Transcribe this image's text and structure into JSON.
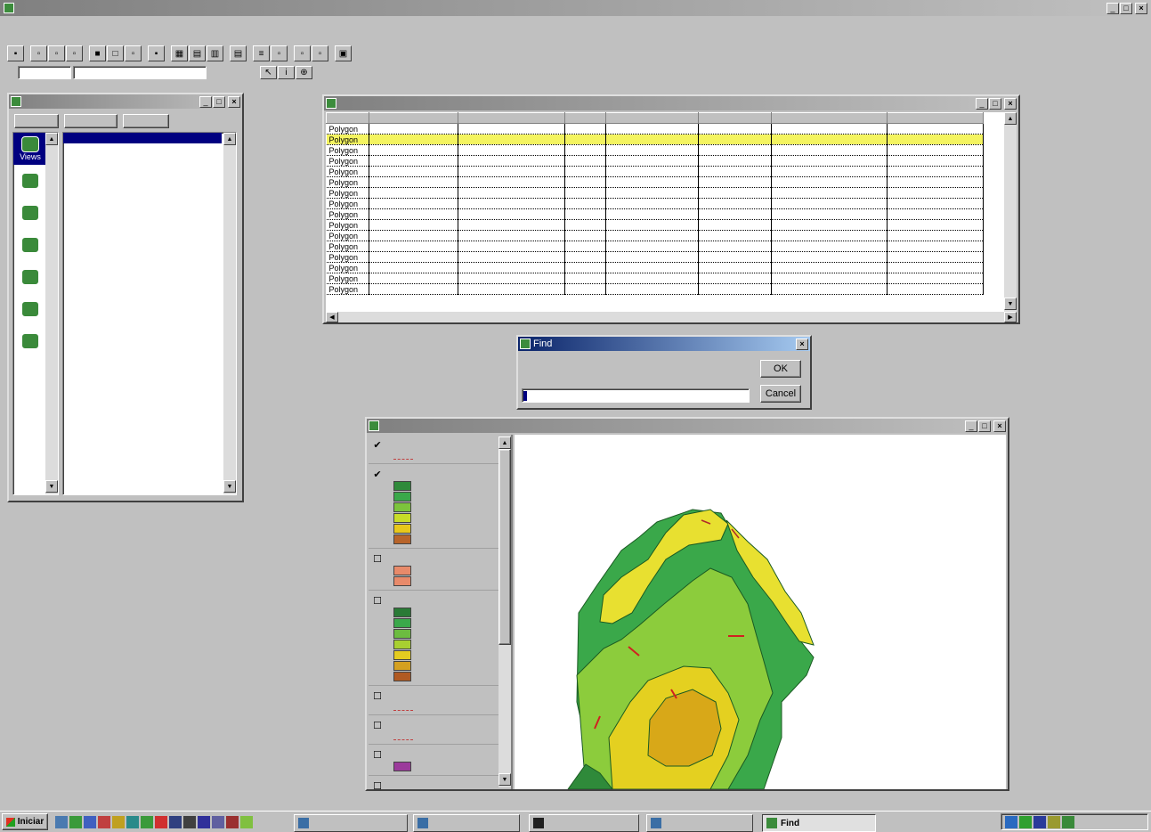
{
  "app": {
    "title": "",
    "menu": [
      "",
      "",
      "",
      "",
      "",
      "",
      "",
      ""
    ],
    "toolbar_labels": {
      "scale_field": "",
      "scale_text": ""
    }
  },
  "project": {
    "title": "",
    "buttons": {
      "new": "",
      "open": "",
      "print": ""
    },
    "doc_types": [
      {
        "label": "Views",
        "icon": "globe-icon"
      },
      {
        "label": "",
        "icon": "table-icon"
      },
      {
        "label": "",
        "icon": "chart-icon"
      },
      {
        "label": "",
        "icon": "layout-icon"
      },
      {
        "label": "",
        "icon": "script-icon"
      },
      {
        "label": "",
        "icon": "dialog-icon"
      },
      {
        "label": "",
        "icon": "view-icon"
      }
    ],
    "selected_item": ""
  },
  "attributes": {
    "title": "",
    "columns": [
      "",
      "",
      "",
      "",
      "",
      "",
      "",
      ""
    ],
    "rows": [
      [
        "Polygon",
        "",
        "",
        "",
        "",
        "",
        "",
        ""
      ],
      [
        "Polygon",
        "",
        "",
        "",
        "",
        "",
        "",
        ""
      ],
      [
        "Polygon",
        "",
        "",
        "",
        "",
        "",
        "",
        ""
      ],
      [
        "Polygon",
        "",
        "",
        "",
        "",
        "",
        "",
        ""
      ],
      [
        "Polygon",
        "",
        "",
        "",
        "",
        "",
        "",
        ""
      ],
      [
        "Polygon",
        "",
        "",
        "",
        "",
        "",
        "",
        ""
      ],
      [
        "Polygon",
        "",
        "",
        "",
        "",
        "",
        "",
        ""
      ],
      [
        "Polygon",
        "",
        "",
        "",
        "",
        "",
        "",
        ""
      ],
      [
        "Polygon",
        "",
        "",
        "",
        "",
        "",
        "",
        ""
      ],
      [
        "Polygon",
        "",
        "",
        "",
        "",
        "",
        "",
        ""
      ],
      [
        "Polygon",
        "",
        "",
        "",
        "",
        "",
        "",
        ""
      ],
      [
        "Polygon",
        "",
        "",
        "",
        "",
        "",
        "",
        ""
      ],
      [
        "Polygon",
        "",
        "",
        "",
        "",
        "",
        "",
        ""
      ],
      [
        "Polygon",
        "",
        "",
        "",
        "",
        "",
        "",
        ""
      ],
      [
        "Polygon",
        "",
        "",
        "",
        "",
        "",
        "",
        ""
      ],
      [
        "Polygon",
        "",
        "",
        "",
        "",
        "",
        "",
        ""
      ]
    ],
    "selected_row": 1
  },
  "find": {
    "title": "Find",
    "label": "",
    "value": "",
    "ok": "OK",
    "cancel": "Cancel"
  },
  "view": {
    "title": "",
    "legend": [
      {
        "name": "",
        "checked": true,
        "classes": [],
        "line_symbol": true
      },
      {
        "name": "",
        "checked": true,
        "classes": [
          {
            "label": "",
            "color": "#2f8a3a"
          },
          {
            "label": "",
            "color": "#3aa84a"
          },
          {
            "label": "",
            "color": "#7cc43c"
          },
          {
            "label": "",
            "color": "#c8dc28"
          },
          {
            "label": "",
            "color": "#e8c81a"
          },
          {
            "label": "",
            "color": "#b8642a"
          }
        ]
      },
      {
        "name": "",
        "checked": false,
        "classes": [
          {
            "label": "",
            "color": "#e88a6a"
          },
          {
            "label": "",
            "color": "#e88a6a"
          }
        ]
      },
      {
        "name": "",
        "checked": false,
        "classes": [
          {
            "label": "",
            "color": "#2a7a36"
          },
          {
            "label": "",
            "color": "#3aa84a"
          },
          {
            "label": "",
            "color": "#6cbc40"
          },
          {
            "label": "",
            "color": "#a8d030"
          },
          {
            "label": "",
            "color": "#e4cc20"
          },
          {
            "label": "",
            "color": "#d4a020"
          },
          {
            "label": "",
            "color": "#b05a22"
          }
        ]
      },
      {
        "name": "",
        "checked": false,
        "classes": [],
        "line_symbol": true
      },
      {
        "name": "",
        "checked": false,
        "classes": [],
        "line_symbol": true
      },
      {
        "name": "",
        "checked": false,
        "classes": [
          {
            "label": "",
            "color": "#9b3a9b"
          }
        ]
      },
      {
        "name": "",
        "checked": false,
        "classes": []
      }
    ]
  },
  "taskbar": {
    "start": "Iniciar",
    "tasks": [
      {
        "label": ""
      },
      {
        "label": ""
      },
      {
        "label": ""
      },
      {
        "label": ""
      },
      {
        "label": "Find"
      }
    ],
    "clock": ""
  }
}
